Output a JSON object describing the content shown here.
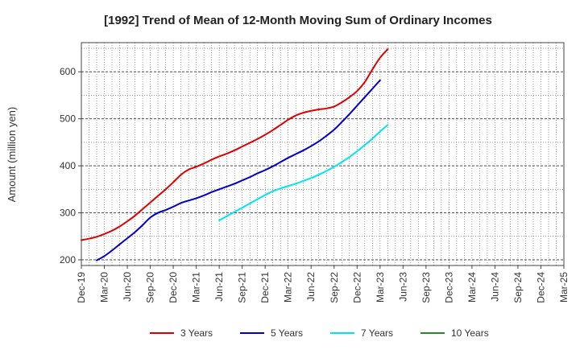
{
  "chart_data": {
    "type": "line",
    "title": "[1992]  Trend of Mean of 12-Month Moving Sum of Ordinary Incomes",
    "xlabel": "",
    "ylabel": "Amount (million yen)",
    "ylim": [
      188,
      662
    ],
    "yticks": [
      200,
      300,
      400,
      500,
      600
    ],
    "grid": true,
    "legend_position": "bottom",
    "x_ticks": [
      "Dec-19",
      "Mar-20",
      "Jun-20",
      "Sep-20",
      "Dec-20",
      "Mar-21",
      "Jun-21",
      "Sep-21",
      "Dec-21",
      "Mar-22",
      "Jun-22",
      "Sep-22",
      "Dec-22",
      "Mar-23",
      "Jun-23",
      "Sep-23",
      "Dec-23",
      "Mar-24",
      "Jun-24",
      "Sep-24",
      "Dec-24",
      "Mar-25"
    ],
    "series": [
      {
        "name": "3 Years",
        "color": "#dd0000",
        "start_index": 0,
        "values": [
          242,
          245,
          249,
          255,
          262,
          271,
          282,
          294,
          308,
          322,
          336,
          350,
          365,
          381,
          392,
          398,
          405,
          413,
          420,
          426,
          433,
          441,
          449,
          457,
          466,
          476,
          487,
          498,
          507,
          513,
          517,
          520,
          522,
          526,
          535,
          546,
          559,
          578,
          605,
          630,
          648
        ]
      },
      {
        "name": "5 Years",
        "color": "#0000cc",
        "start_index": 2,
        "values": [
          199,
          208,
          220,
          233,
          246,
          259,
          274,
          290,
          300,
          306,
          313,
          321,
          326,
          331,
          337,
          344,
          350,
          356,
          362,
          369,
          376,
          384,
          391,
          399,
          408,
          417,
          425,
          433,
          442,
          452,
          464,
          477,
          493,
          510,
          528,
          546,
          564,
          582
        ]
      },
      {
        "name": "7 Years",
        "color": "#00e5ee",
        "start_index": 18,
        "values": [
          284,
          293,
          302,
          311,
          320,
          329,
          338,
          346,
          352,
          357,
          362,
          368,
          374,
          381,
          389,
          398,
          408,
          419,
          431,
          444,
          458,
          473,
          487
        ]
      },
      {
        "name": "10 Years",
        "color": "#228b22",
        "start_index": 0,
        "values": []
      }
    ]
  }
}
